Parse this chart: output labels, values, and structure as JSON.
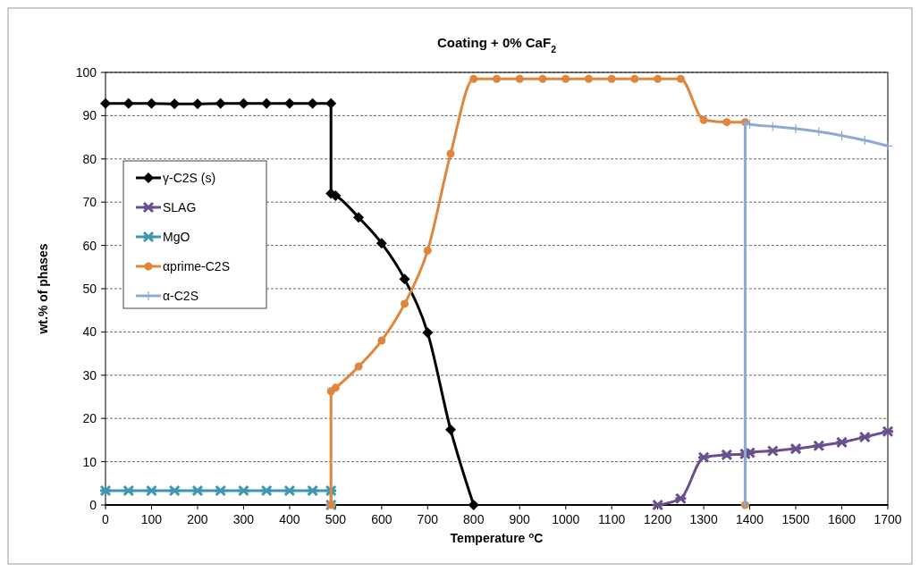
{
  "chart_data": {
    "type": "line",
    "title": "Coating + 0% CaF$_{2}$",
    "xlabel": "Temperature $^{o}$C",
    "ylabel": "wt.% of phases",
    "xlim": [
      0,
      1700
    ],
    "xticks": [
      0,
      100,
      200,
      300,
      400,
      500,
      600,
      700,
      800,
      900,
      1000,
      1100,
      1200,
      1300,
      1400,
      1500,
      1600,
      1700
    ],
    "ylim": [
      0,
      100
    ],
    "yticks": [
      0,
      10,
      20,
      30,
      40,
      50,
      60,
      70,
      80,
      90,
      100
    ],
    "grid": "y",
    "legend": "left",
    "series": [
      {
        "name": "γ-C2S (s)",
        "color": "#000000",
        "marker": "diamond",
        "x": [
          0,
          50,
          100,
          150,
          200,
          250,
          300,
          350,
          400,
          450,
          490,
          490,
          500,
          550,
          600,
          650,
          700,
          750,
          800
        ],
        "values": [
          92.8,
          92.8,
          92.8,
          92.7,
          92.7,
          92.8,
          92.8,
          92.8,
          92.8,
          92.8,
          92.8,
          72,
          71.5,
          66.5,
          60.5,
          52.2,
          39.8,
          17.4,
          0
        ]
      },
      {
        "name": "SLAG",
        "color": "#6a4f8e",
        "marker": "cross",
        "x": [
          1200,
          1250,
          1300,
          1350,
          1390,
          1400,
          1450,
          1500,
          1550,
          1600,
          1650,
          1700
        ],
        "values": [
          0,
          1.5,
          11,
          11.6,
          11.8,
          12.1,
          12.5,
          13,
          13.7,
          14.5,
          15.7,
          17
        ]
      },
      {
        "name": "MgO",
        "color": "#3d97ae",
        "marker": "cross",
        "x": [
          0,
          50,
          100,
          150,
          200,
          250,
          300,
          350,
          400,
          450,
          490,
          490
        ],
        "values": [
          3.3,
          3.3,
          3.3,
          3.3,
          3.3,
          3.3,
          3.3,
          3.3,
          3.3,
          3.3,
          3.3,
          0
        ]
      },
      {
        "name": "αprime-C2S",
        "color": "#e0863c",
        "marker": "circle",
        "x": [
          490,
          490,
          500,
          550,
          600,
          650,
          700,
          750,
          800,
          850,
          900,
          950,
          1000,
          1050,
          1100,
          1150,
          1200,
          1250,
          1300,
          1350,
          1390,
          1390
        ],
        "values": [
          0,
          26.3,
          27.1,
          32,
          38,
          46.5,
          58.8,
          81.2,
          98.5,
          98.5,
          98.5,
          98.5,
          98.5,
          98.5,
          98.5,
          98.5,
          98.5,
          98.5,
          89,
          88.5,
          88.5,
          0
        ]
      },
      {
        "name": "α-C2S",
        "color": "#8eaad4",
        "marker": "plus",
        "x": [
          1390,
          1390,
          1400,
          1450,
          1500,
          1550,
          1600,
          1650,
          1700
        ],
        "values": [
          0,
          88.3,
          88,
          87.5,
          87,
          86.3,
          85.4,
          84.3,
          83
        ]
      }
    ]
  }
}
